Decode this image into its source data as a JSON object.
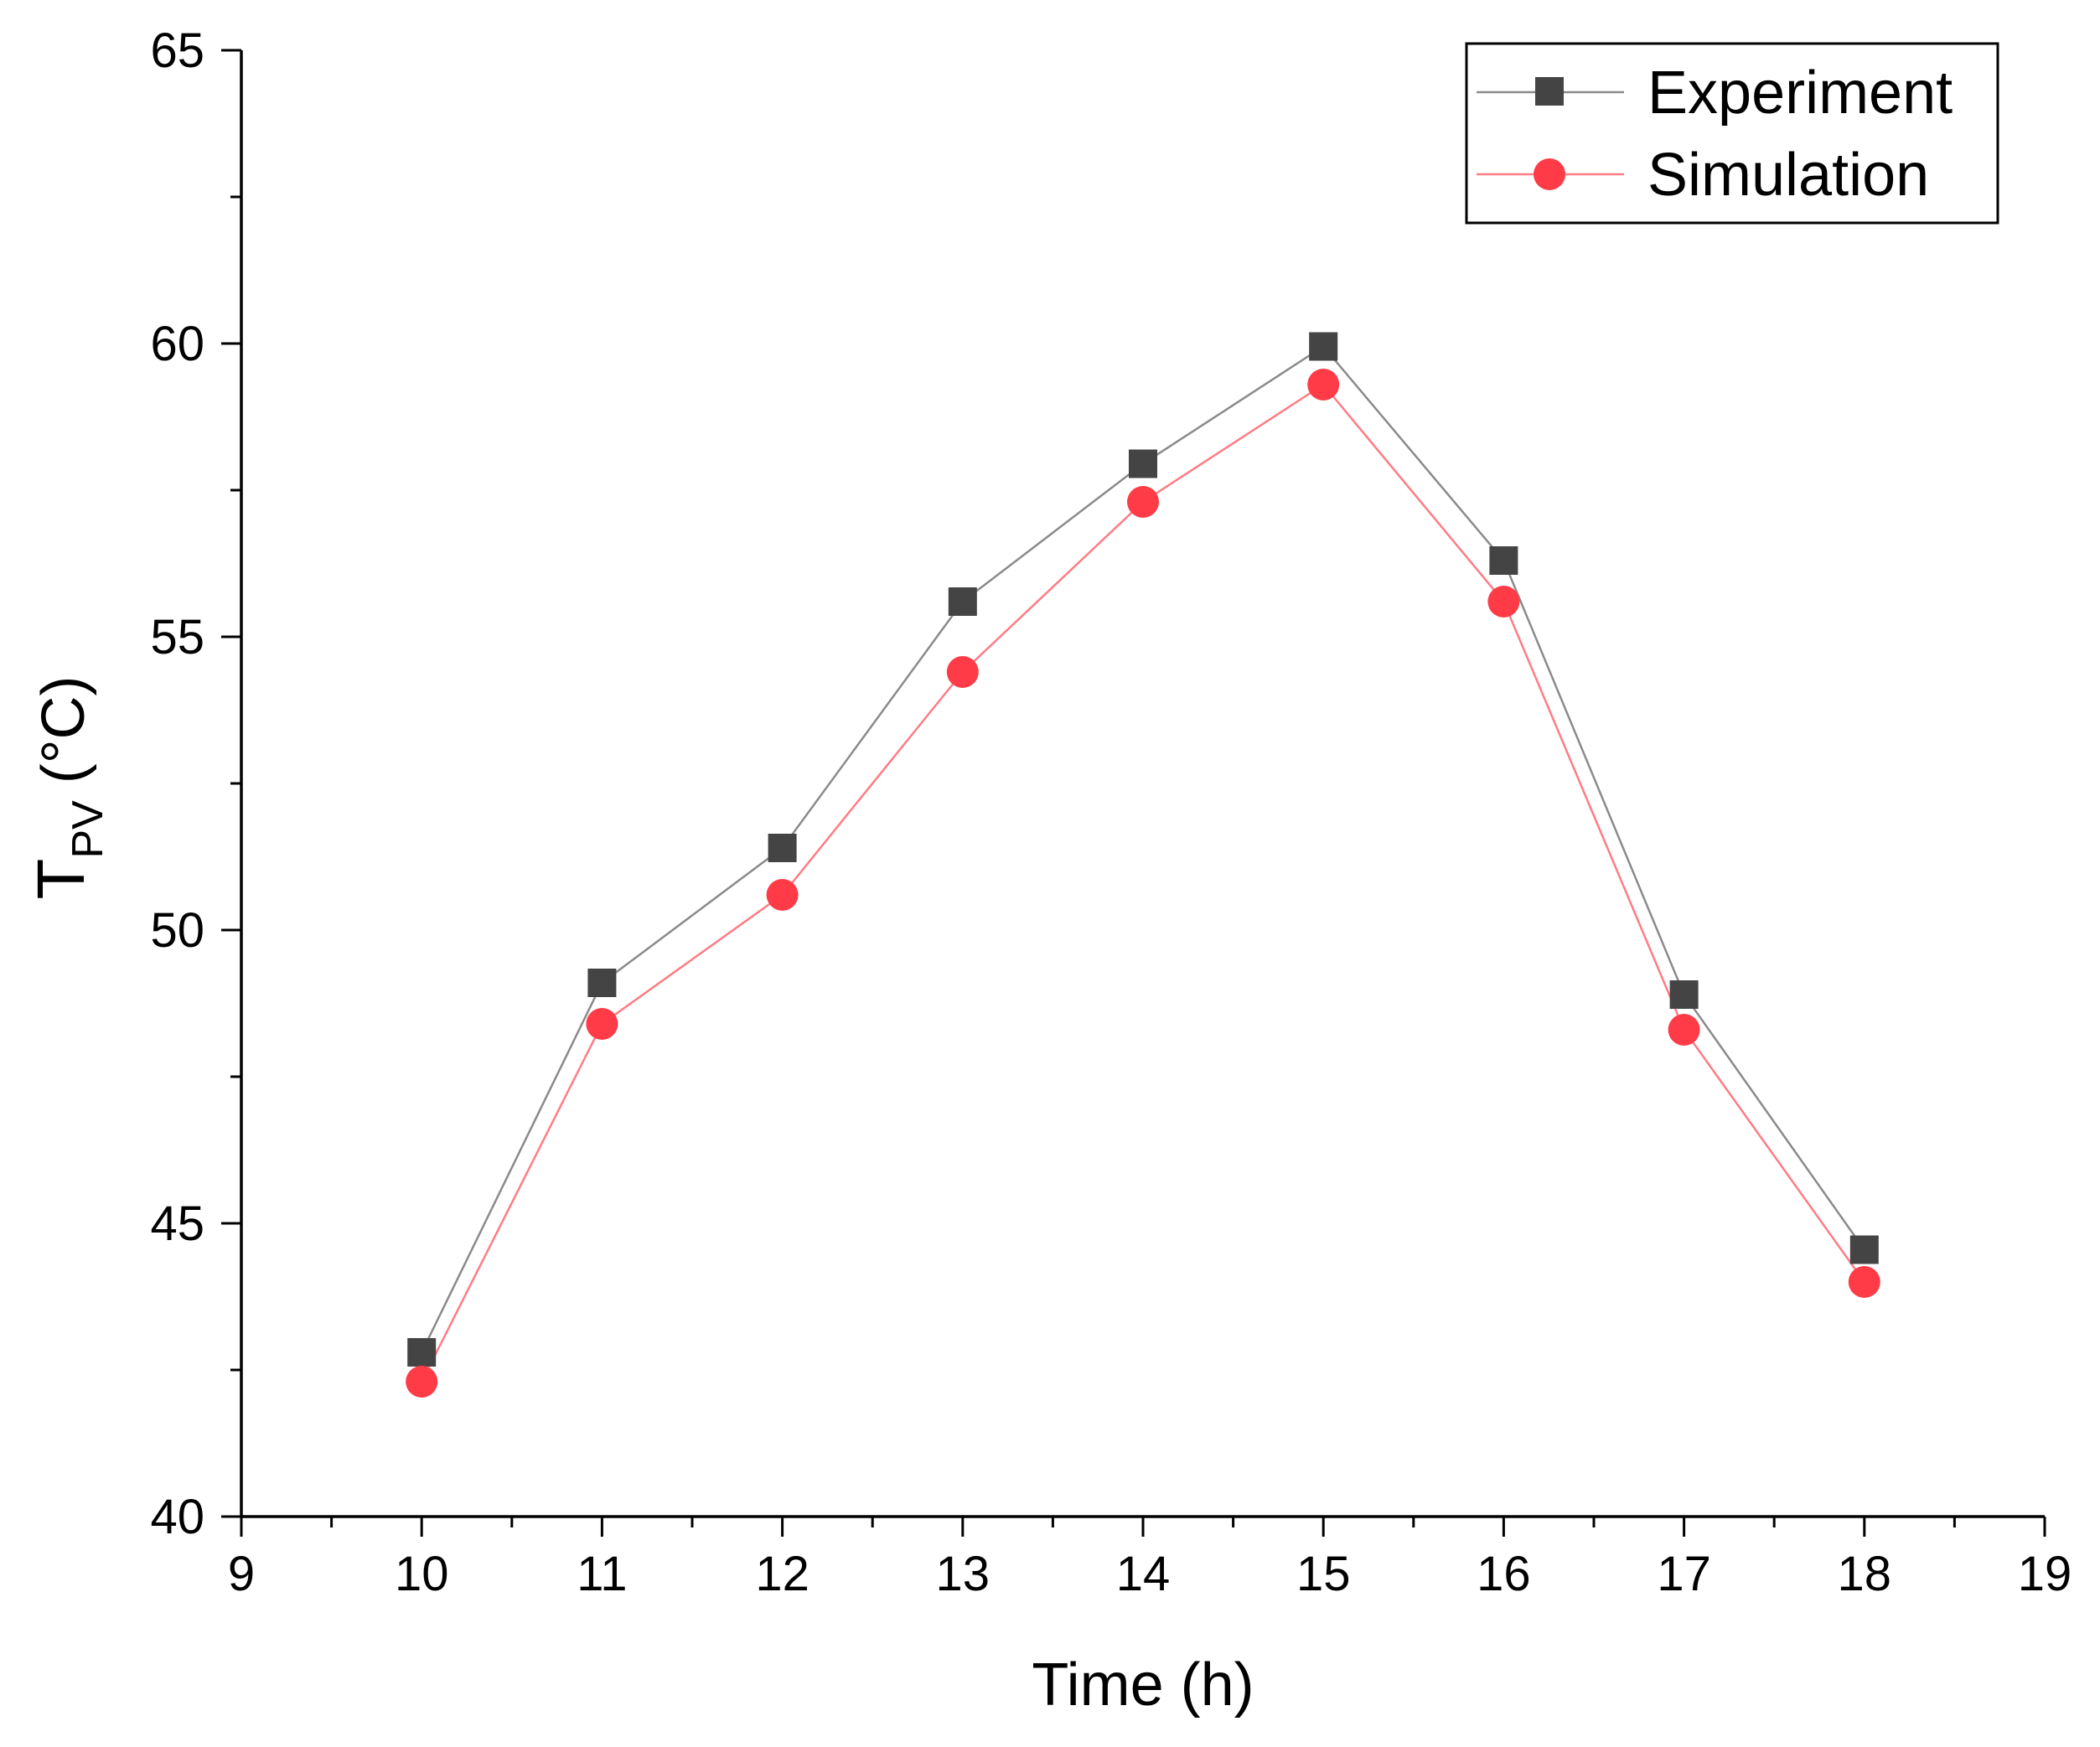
{
  "chart_data": {
    "type": "line",
    "title": "",
    "xlabel": "Time (h)",
    "ylabel": {
      "main": "T",
      "subscript": "PV",
      "unit": " (°C)"
    },
    "xlim": [
      9,
      19
    ],
    "ylim": [
      40,
      65
    ],
    "x_major_ticks": [
      9,
      10,
      11,
      12,
      13,
      14,
      15,
      16,
      17,
      18,
      19
    ],
    "x_tick_labels": [
      "9",
      "10",
      "11",
      "12",
      "13",
      "14",
      "15",
      "16",
      "17",
      "18",
      "19"
    ],
    "y_major_ticks": [
      40,
      45,
      50,
      55,
      60,
      65
    ],
    "y_tick_labels": [
      "40",
      "45",
      "50",
      "55",
      "60",
      "65"
    ],
    "x_minor_step": 0.5,
    "y_minor_step": 2.5,
    "grid": false,
    "legend_position": "top-right",
    "x": [
      10,
      11,
      12,
      13,
      14,
      15,
      16,
      17,
      18
    ],
    "series": [
      {
        "name": "Experiment",
        "marker": "square",
        "marker_color": "#444444",
        "line_color": "#8a8a8a",
        "values": [
          42.8,
          49.1,
          51.4,
          55.6,
          57.95,
          59.95,
          56.3,
          48.9,
          44.55
        ]
      },
      {
        "name": "Simulation",
        "marker": "circle",
        "marker_color": "#ff3b47",
        "line_color": "#ff7c84",
        "values": [
          42.3,
          48.4,
          50.6,
          54.4,
          57.3,
          59.3,
          55.6,
          48.3,
          44.0
        ]
      }
    ]
  }
}
